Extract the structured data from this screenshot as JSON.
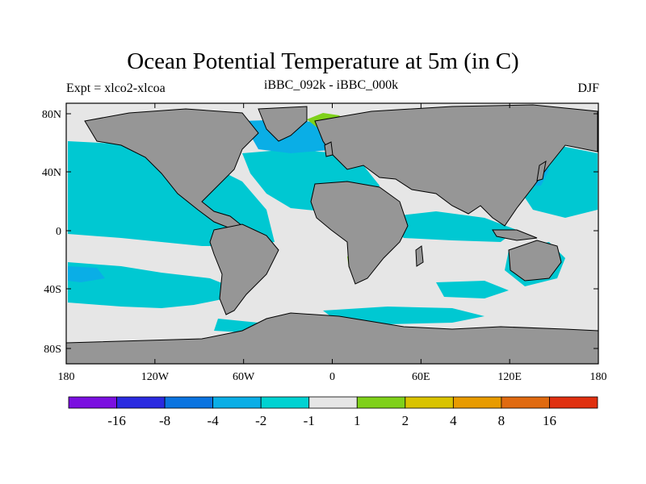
{
  "title": "Ocean Potential Temperature at 5m (in C)",
  "subtitle_left": "Expt = xlco2-xlcoa",
  "subtitle_center": "iBBC_092k - iBBC_000k",
  "subtitle_right": "DJF",
  "lon_ticks": [
    "180",
    "120W",
    "60W",
    "0",
    "60E",
    "120E",
    "180"
  ],
  "lat_ticks": [
    "80N",
    "40N",
    "0",
    "40S",
    "80S"
  ],
  "colorbar": {
    "colors": [
      "#7b0fe0",
      "#2a2ae0",
      "#0b74e0",
      "#0aaee6",
      "#00d2d2",
      "#e6e6e6",
      "#7fd11a",
      "#d9c300",
      "#e89b00",
      "#e06a10",
      "#e03010"
    ],
    "labels": [
      "-16",
      "-8",
      "-4",
      "-2",
      "-1",
      "1",
      "2",
      "4",
      "8",
      "16"
    ]
  },
  "colors": {
    "land": "#969696",
    "ocean_neutral": "#e6e6e6",
    "cool": "#00c8d2",
    "mid": "#0aaee6",
    "deep": "#0b74e0"
  }
}
